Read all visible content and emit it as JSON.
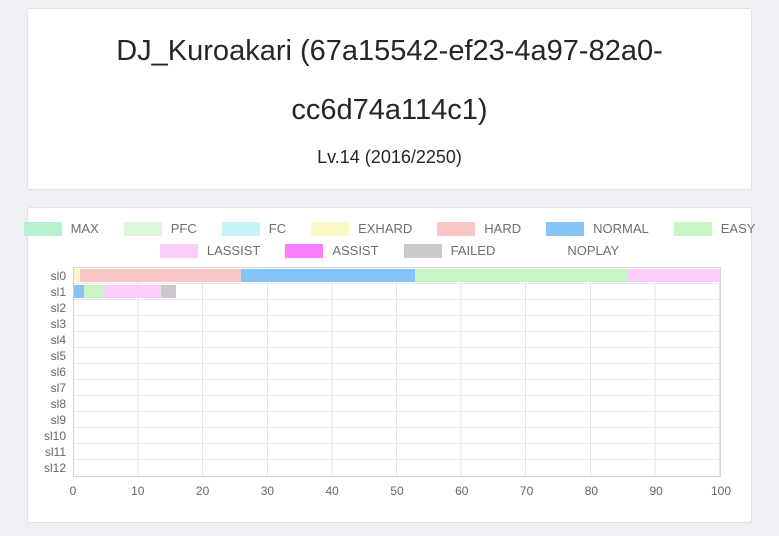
{
  "profile": {
    "title": "DJ_Kuroakari (67a15542-ef23-4a97-82a0-cc6d74a114c1)",
    "level": "Lv.14 (2016/2250)"
  },
  "chart_data": {
    "type": "bar",
    "orientation": "horizontal",
    "stacked": true,
    "unit": "percent",
    "title": "",
    "xlabel": "",
    "ylabel": "",
    "xlim": [
      0,
      100
    ],
    "x_ticks": [
      0,
      10,
      20,
      30,
      40,
      50,
      60,
      70,
      80,
      90,
      100
    ],
    "grid": true,
    "legend_position": "top",
    "categories": [
      "sl0",
      "sl1",
      "sl2",
      "sl3",
      "sl4",
      "sl5",
      "sl6",
      "sl7",
      "sl8",
      "sl9",
      "sl10",
      "sl11",
      "sl12"
    ],
    "legend_rows": [
      [
        "MAX",
        "PFC",
        "FC",
        "EXHARD",
        "HARD",
        "NORMAL",
        "EASY"
      ],
      [
        "LASSIST",
        "ASSIST",
        "FAILED",
        "NOPLAY"
      ]
    ],
    "series": [
      {
        "name": "MAX",
        "color": "#b3f2cd",
        "values": [
          0,
          0,
          0,
          0,
          0,
          0,
          0,
          0,
          0,
          0,
          0,
          0,
          0
        ]
      },
      {
        "name": "PFC",
        "color": "#dcf7dc",
        "values": [
          0,
          0,
          0,
          0,
          0,
          0,
          0,
          0,
          0,
          0,
          0,
          0,
          0
        ]
      },
      {
        "name": "FC",
        "color": "#c5f3f7",
        "values": [
          0,
          0,
          0,
          0,
          0,
          0,
          0,
          0,
          0,
          0,
          0,
          0,
          0
        ]
      },
      {
        "name": "EXHARD",
        "color": "#f9f9c5",
        "values": [
          1,
          0,
          0,
          0,
          0,
          0,
          0,
          0,
          0,
          0,
          0,
          0,
          0
        ]
      },
      {
        "name": "HARD",
        "color": "#f9c6c6",
        "values": [
          24.8,
          0,
          0,
          0,
          0,
          0,
          0,
          0,
          0,
          0,
          0,
          0,
          0
        ]
      },
      {
        "name": "NORMAL",
        "color": "#85c4f5",
        "values": [
          27,
          1.5,
          0,
          0,
          0,
          0,
          0,
          0,
          0,
          0,
          0,
          0,
          0
        ]
      },
      {
        "name": "EASY",
        "color": "#c8f5c3",
        "values": [
          32.9,
          3.2,
          0,
          0,
          0,
          0,
          0,
          0,
          0,
          0,
          0,
          0,
          0
        ]
      },
      {
        "name": "LASSIST",
        "color": "#fbcdfb",
        "values": [
          14.3,
          8.8,
          0,
          0,
          0,
          0,
          0,
          0,
          0,
          0,
          0,
          0,
          0
        ]
      },
      {
        "name": "ASSIST",
        "color": "#fb7dfb",
        "values": [
          0,
          0,
          0,
          0,
          0,
          0,
          0,
          0,
          0,
          0,
          0,
          0,
          0
        ]
      },
      {
        "name": "FAILED",
        "color": "#c9c9c9",
        "values": [
          0,
          2.3,
          0,
          0,
          0,
          0,
          0,
          0,
          0,
          0,
          0,
          0,
          0
        ]
      },
      {
        "name": "NOPLAY",
        "color": "transparent",
        "values": [
          0,
          84.2,
          100,
          100,
          100,
          100,
          100,
          100,
          100,
          100,
          100,
          100,
          100
        ]
      }
    ]
  }
}
